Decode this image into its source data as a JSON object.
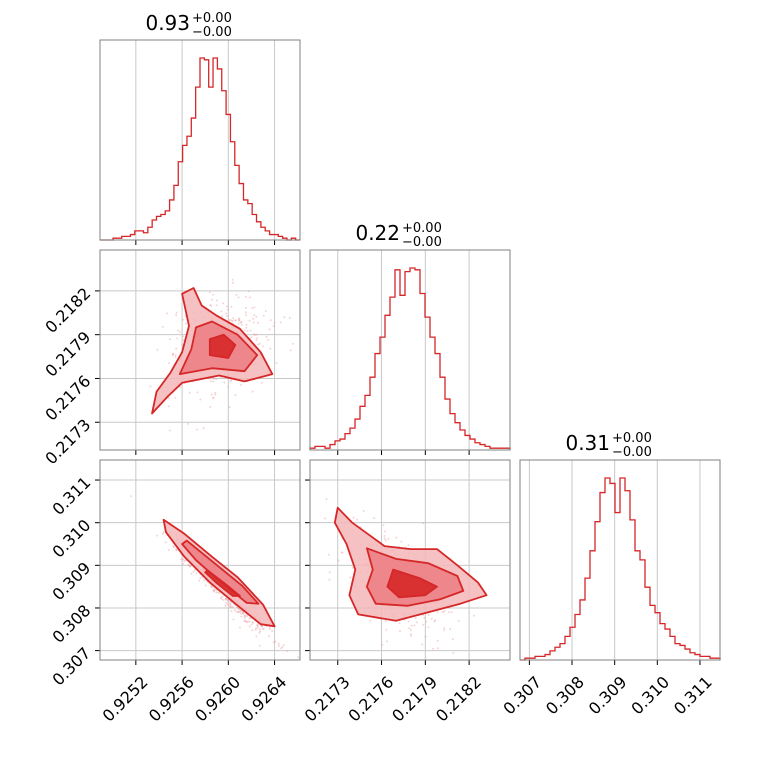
{
  "colors": {
    "line": "#d62728",
    "fill_outer": "#f4b6b8",
    "fill_inner": "#ec7d82",
    "frame": "#808080",
    "grid": "#c8c8c8"
  },
  "chart_data": {
    "type": "corner",
    "grid": true,
    "titles": [
      {
        "value": "0.93",
        "upper": "+0.00",
        "lower": "−0.00"
      },
      {
        "value": "0.22",
        "upper": "+0.00",
        "lower": "−0.00"
      },
      {
        "value": "0.31",
        "upper": "+0.00",
        "lower": "−0.00"
      }
    ],
    "parameters": [
      {
        "range": [
          0.92489,
          0.92662
        ],
        "ticks": [
          0.9252,
          0.9256,
          0.926,
          0.9264
        ],
        "tick_labels": [
          "0.9252",
          "0.9256",
          "0.9260",
          "0.9264"
        ]
      },
      {
        "range": [
          0.21711,
          0.21848
        ],
        "ticks": [
          0.2173,
          0.2176,
          0.2179,
          0.2182
        ],
        "tick_labels": [
          "0.2173",
          "0.2176",
          "0.2179",
          "0.2182"
        ]
      },
      {
        "range": [
          0.30678,
          0.31147
        ],
        "ticks": [
          0.307,
          0.308,
          0.309,
          0.31,
          0.311
        ],
        "tick_labels": [
          "0.307",
          "0.308",
          "0.309",
          "0.310",
          "0.311"
        ]
      }
    ],
    "histograms": [
      [
        0,
        0,
        0,
        1,
        1,
        2,
        2,
        3,
        5,
        5,
        4,
        7,
        11,
        13,
        14,
        16,
        22,
        30,
        43,
        52,
        57,
        67,
        84,
        100,
        99,
        84,
        100,
        94,
        82,
        69,
        54,
        41,
        31,
        22,
        20,
        14,
        10,
        7,
        5,
        3,
        3,
        2,
        1,
        0,
        1,
        0
      ],
      [
        1,
        2,
        2,
        1,
        3,
        5,
        6,
        9,
        12,
        17,
        24,
        30,
        40,
        53,
        62,
        74,
        84,
        99,
        85,
        98,
        100,
        99,
        86,
        73,
        62,
        53,
        40,
        28,
        20,
        15,
        11,
        8,
        6,
        4,
        3,
        2,
        1,
        1,
        1,
        1
      ],
      [
        0,
        1,
        1,
        2,
        2,
        3,
        5,
        7,
        9,
        13,
        18,
        25,
        33,
        45,
        60,
        76,
        92,
        100,
        97,
        81,
        100,
        93,
        77,
        60,
        55,
        40,
        30,
        26,
        20,
        17,
        13,
        9,
        8,
        6,
        4,
        3,
        2,
        2,
        1,
        1
      ]
    ],
    "pairs": [
      {
        "x": 0,
        "y": 1,
        "center": [
          0.92592,
          0.21782
        ],
        "levels": [
          [
            [
              0.92534,
              0.21736
            ],
            [
              0.92548,
              0.21748
            ],
            [
              0.9256,
              0.21757
            ],
            [
              0.92592,
              0.21762
            ],
            [
              0.92614,
              0.21758
            ],
            [
              0.92638,
              0.21763
            ],
            [
              0.92628,
              0.21778
            ],
            [
              0.9261,
              0.21794
            ],
            [
              0.9259,
              0.21803
            ],
            [
              0.92577,
              0.2181
            ],
            [
              0.9257,
              0.21822
            ],
            [
              0.9256,
              0.21818
            ],
            [
              0.92566,
              0.21796
            ],
            [
              0.9256,
              0.21778
            ],
            [
              0.9255,
              0.21764
            ],
            [
              0.92538,
              0.21751
            ]
          ],
          [
            [
              0.92558,
              0.21763
            ],
            [
              0.92586,
              0.21767
            ],
            [
              0.92614,
              0.21765
            ],
            [
              0.92625,
              0.21776
            ],
            [
              0.92608,
              0.2179
            ],
            [
              0.92586,
              0.21799
            ],
            [
              0.92572,
              0.21795
            ],
            [
              0.92568,
              0.2178
            ]
          ],
          [
            [
              0.92584,
              0.21776
            ],
            [
              0.926,
              0.21774
            ],
            [
              0.92606,
              0.21783
            ],
            [
              0.92596,
              0.2179
            ],
            [
              0.92584,
              0.21787
            ]
          ]
        ]
      },
      {
        "x": 0,
        "y": 2,
        "center": [
          0.92594,
          0.30846
        ],
        "levels": [
          [
            [
              0.92544,
              0.31007
            ],
            [
              0.92562,
              0.30974
            ],
            [
              0.92586,
              0.3092
            ],
            [
              0.92608,
              0.30872
            ],
            [
              0.9263,
              0.30808
            ],
            [
              0.9264,
              0.30757
            ],
            [
              0.92628,
              0.30762
            ],
            [
              0.92606,
              0.3081
            ],
            [
              0.92584,
              0.3086
            ],
            [
              0.92562,
              0.3092
            ],
            [
              0.92546,
              0.30978
            ]
          ],
          [
            [
              0.92564,
              0.30958
            ],
            [
              0.92588,
              0.30905
            ],
            [
              0.92612,
              0.30852
            ],
            [
              0.92626,
              0.3081
            ],
            [
              0.92616,
              0.30812
            ],
            [
              0.92594,
              0.3086
            ],
            [
              0.92572,
              0.30912
            ],
            [
              0.9256,
              0.3095
            ]
          ],
          [
            [
              0.92582,
              0.30888
            ],
            [
              0.92598,
              0.30855
            ],
            [
              0.9261,
              0.30828
            ],
            [
              0.92604,
              0.30828
            ],
            [
              0.9259,
              0.30858
            ],
            [
              0.9258,
              0.30884
            ]
          ]
        ]
      },
      {
        "x": 1,
        "y": 2,
        "center": [
          0.21772,
          0.30854
        ],
        "levels": [
          [
            [
              0.2173,
              0.31035
            ],
            [
              0.2174,
              0.31
            ],
            [
              0.2175,
              0.30975
            ],
            [
              0.21762,
              0.30945
            ],
            [
              0.2178,
              0.30938
            ],
            [
              0.21798,
              0.30938
            ],
            [
              0.21812,
              0.309
            ],
            [
              0.21826,
              0.3086
            ],
            [
              0.21832,
              0.3083
            ],
            [
              0.21814,
              0.3081
            ],
            [
              0.21792,
              0.3079
            ],
            [
              0.2177,
              0.3077
            ],
            [
              0.21744,
              0.30785
            ],
            [
              0.21738,
              0.3083
            ],
            [
              0.21742,
              0.3089
            ],
            [
              0.21736,
              0.3095
            ],
            [
              0.21728,
              0.31
            ]
          ],
          [
            [
              0.2175,
              0.3094
            ],
            [
              0.2177,
              0.30915
            ],
            [
              0.21792,
              0.30905
            ],
            [
              0.21812,
              0.30875
            ],
            [
              0.21816,
              0.3084
            ],
            [
              0.218,
              0.3082
            ],
            [
              0.21778,
              0.30805
            ],
            [
              0.21756,
              0.3081
            ],
            [
              0.2175,
              0.3085
            ],
            [
              0.21754,
              0.3089
            ]
          ],
          [
            [
              0.21768,
              0.3089
            ],
            [
              0.21786,
              0.3087
            ],
            [
              0.21798,
              0.3085
            ],
            [
              0.2179,
              0.3083
            ],
            [
              0.21772,
              0.30825
            ],
            [
              0.21764,
              0.3085
            ]
          ]
        ]
      }
    ]
  }
}
